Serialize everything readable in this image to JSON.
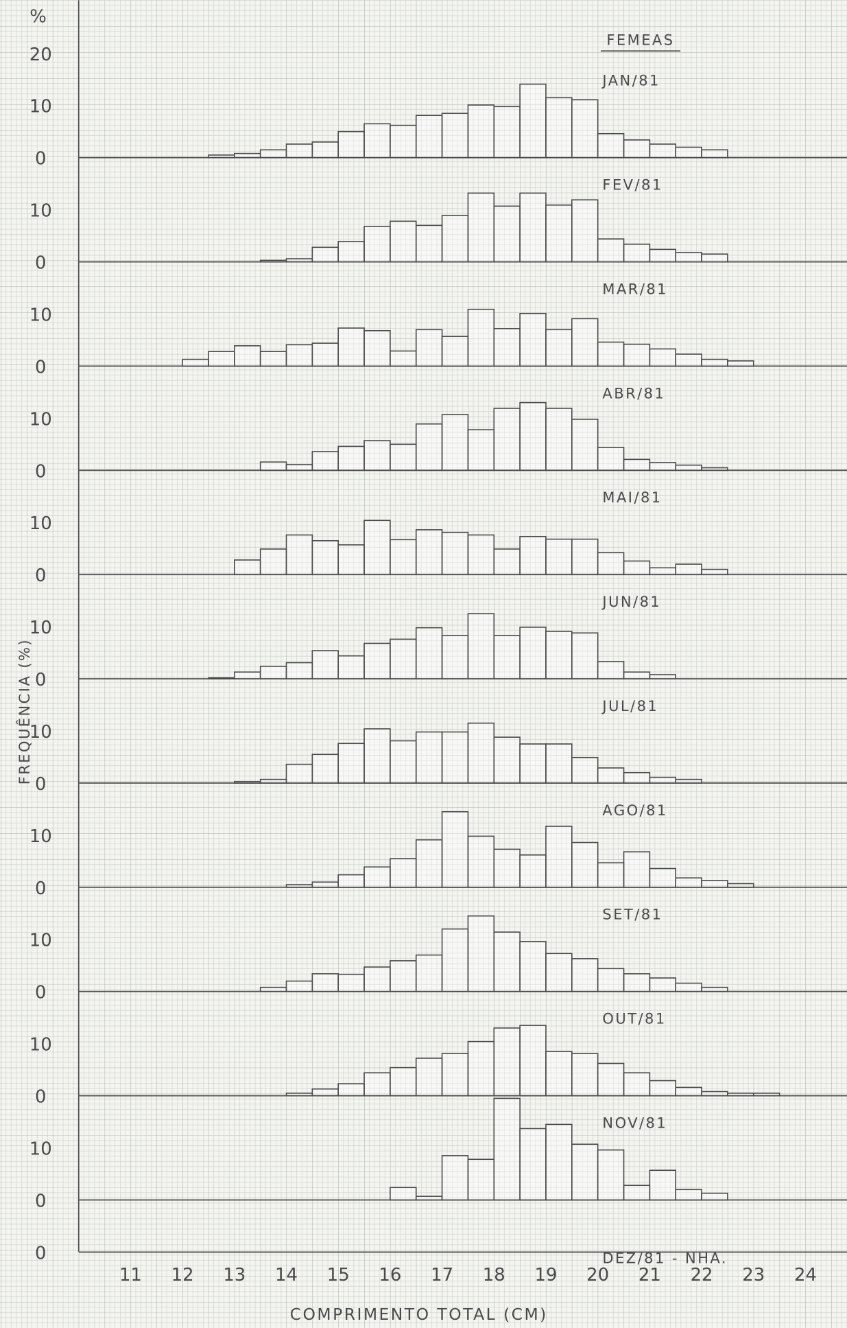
{
  "chart_data": {
    "type": "histogram",
    "title": "FEMEAS",
    "y_unit_label": "%",
    "xlabel": "COMPRIMENTO TOTAL (CM)",
    "ylabel": "FREQUÊNCIA (%)",
    "bins": [
      12,
      12.5,
      13,
      13.5,
      14,
      14.5,
      15,
      15.5,
      16,
      16.5,
      17,
      17.5,
      18,
      18.5,
      19,
      19.5,
      20,
      20.5,
      21,
      21.5,
      22,
      22.5,
      23,
      23.5
    ],
    "xlim": [
      10,
      24.8
    ],
    "xticks": [
      11,
      12,
      13,
      14,
      15,
      16,
      17,
      18,
      19,
      20,
      21,
      22,
      23,
      24
    ],
    "ylim": [
      0,
      20
    ],
    "yticks": [
      0,
      10,
      20
    ],
    "series": [
      {
        "name": "JAN/81",
        "color": "#4a4a4a",
        "values": [
          null,
          0.5,
          0.8,
          1.5,
          2.6,
          3.0,
          5.0,
          6.5,
          6.2,
          8.1,
          8.5,
          10.1,
          9.8,
          14.1,
          11.5,
          11.1,
          4.6,
          3.4,
          2.6,
          2.0,
          1.5,
          null,
          null
        ]
      },
      {
        "name": "FEV/81",
        "color": "#4a4a4a",
        "values": [
          null,
          null,
          null,
          0.3,
          0.6,
          2.8,
          3.9,
          6.8,
          7.8,
          7.0,
          8.9,
          13.2,
          10.7,
          13.2,
          10.9,
          11.9,
          4.4,
          3.4,
          2.4,
          1.8,
          1.5,
          null,
          null
        ]
      },
      {
        "name": "MAR/81",
        "color": "#4a4a4a",
        "values": [
          1.3,
          2.8,
          3.9,
          2.8,
          4.1,
          4.4,
          7.3,
          6.8,
          2.9,
          7.0,
          5.7,
          10.9,
          7.2,
          10.1,
          7.0,
          9.1,
          4.6,
          4.2,
          3.3,
          2.3,
          1.3,
          1.0,
          null
        ]
      },
      {
        "name": "ABR/81",
        "color": "#4a4a4a",
        "values": [
          null,
          null,
          null,
          1.6,
          1.1,
          3.6,
          4.6,
          5.7,
          5.0,
          8.9,
          10.7,
          7.8,
          11.9,
          13.0,
          11.9,
          9.8,
          4.4,
          2.1,
          1.5,
          1.0,
          0.5,
          null,
          null
        ]
      },
      {
        "name": "MAI/81",
        "color": "#4a4a4a",
        "values": [
          null,
          null,
          2.8,
          4.9,
          7.6,
          6.5,
          5.7,
          10.4,
          6.7,
          8.6,
          8.1,
          7.6,
          4.9,
          7.3,
          6.8,
          6.8,
          4.2,
          2.6,
          1.3,
          2.0,
          1.0,
          null,
          null
        ]
      },
      {
        "name": "JUN/81",
        "color": "#4a4a4a",
        "values": [
          null,
          0.2,
          1.3,
          2.4,
          3.1,
          5.4,
          4.4,
          6.8,
          7.6,
          9.8,
          8.3,
          12.5,
          8.3,
          9.9,
          9.1,
          8.8,
          3.3,
          1.3,
          0.8,
          null,
          null,
          null,
          null
        ]
      },
      {
        "name": "JUL/81",
        "color": "#4a4a4a",
        "values": [
          null,
          null,
          0.3,
          0.7,
          3.6,
          5.5,
          7.6,
          10.4,
          8.1,
          9.8,
          9.8,
          11.5,
          8.8,
          7.5,
          7.5,
          4.9,
          2.9,
          2.0,
          1.1,
          0.7,
          null,
          null,
          null
        ]
      },
      {
        "name": "AGO/81",
        "color": "#4a4a4a",
        "values": [
          null,
          null,
          null,
          null,
          0.5,
          1.0,
          2.4,
          3.9,
          5.5,
          9.1,
          14.5,
          9.8,
          7.3,
          6.2,
          11.7,
          8.6,
          4.7,
          6.8,
          3.6,
          1.8,
          1.3,
          0.7,
          null
        ]
      },
      {
        "name": "SET/81",
        "color": "#4a4a4a",
        "values": [
          null,
          null,
          null,
          0.8,
          2.0,
          3.4,
          3.3,
          4.7,
          5.9,
          7.0,
          12.0,
          14.5,
          11.4,
          9.6,
          7.3,
          6.3,
          4.4,
          3.4,
          2.6,
          1.6,
          0.8,
          null,
          null
        ]
      },
      {
        "name": "OUT/81",
        "color": "#4a4a4a",
        "values": [
          null,
          null,
          null,
          null,
          0.5,
          1.3,
          2.3,
          4.4,
          5.4,
          7.2,
          8.1,
          10.4,
          13.0,
          13.5,
          8.5,
          8.1,
          6.2,
          4.4,
          2.9,
          1.6,
          0.8,
          0.5,
          0.5
        ]
      },
      {
        "name": "NOV/81",
        "color": "#4a4a4a",
        "values": [
          null,
          null,
          null,
          null,
          null,
          null,
          null,
          null,
          2.4,
          0.7,
          8.5,
          7.8,
          19.5,
          13.7,
          14.5,
          10.7,
          9.6,
          2.8,
          5.7,
          2.0,
          1.3,
          null,
          null
        ]
      },
      {
        "name": "DEZ/81 - NHA.",
        "color": "#4a4a4a",
        "values": [
          null,
          null,
          null,
          null,
          null,
          null,
          null,
          null,
          null,
          null,
          null,
          null,
          null,
          null,
          null,
          null,
          null,
          null,
          null,
          null,
          null,
          null,
          null
        ]
      }
    ]
  }
}
